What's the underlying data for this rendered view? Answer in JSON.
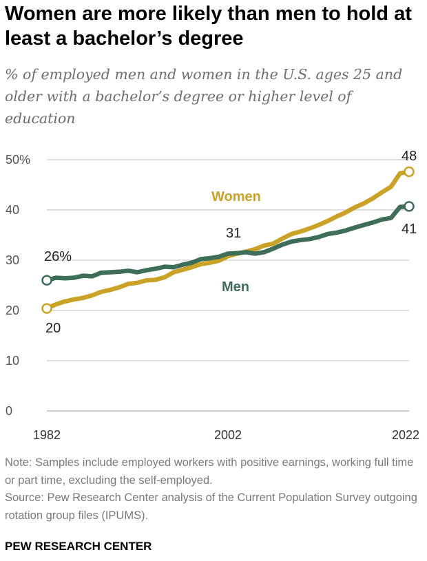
{
  "title": "Women are more likely than men to hold at least a bachelor’s degree",
  "subtitle": "% of employed men and women in the U.S. ages 25 and older with a bachelor’s degree or higher level of education",
  "note": "Note: Samples include employed workers with positive earnings, working full time or part time, excluding the self-employed.",
  "source": "Source: Pew Research Center analysis of the Current Population Survey outgoing rotation group files (IPUMS).",
  "brand": "PEW RESEARCH CENTER",
  "chart_data": {
    "type": "line",
    "x": [
      1982,
      1983,
      1984,
      1985,
      1986,
      1987,
      1988,
      1989,
      1990,
      1991,
      1992,
      1993,
      1994,
      1995,
      1996,
      1997,
      1998,
      1999,
      2000,
      2001,
      2002,
      2003,
      2004,
      2005,
      2006,
      2007,
      2008,
      2009,
      2010,
      2011,
      2012,
      2013,
      2014,
      2015,
      2016,
      2017,
      2018,
      2019,
      2020,
      2021,
      2022
    ],
    "series": [
      {
        "name": "Women",
        "color": "#c9a227",
        "values": [
          20.4,
          21.2,
          21.8,
          22.2,
          22.5,
          23.0,
          23.7,
          24.1,
          24.6,
          25.3,
          25.5,
          26.0,
          26.1,
          26.6,
          27.6,
          28.1,
          28.6,
          29.2,
          29.5,
          29.9,
          30.8,
          31.3,
          31.7,
          32.2,
          32.9,
          33.3,
          34.3,
          35.2,
          35.7,
          36.3,
          37.0,
          37.8,
          38.7,
          39.5,
          40.5,
          41.3,
          42.3,
          43.5,
          44.6,
          47.3,
          47.6
        ],
        "label_start": "20",
        "label_end": "48"
      },
      {
        "name": "Men",
        "color": "#3e6e57",
        "values": [
          26.0,
          26.5,
          26.4,
          26.5,
          26.9,
          26.8,
          27.5,
          27.6,
          27.7,
          27.9,
          27.6,
          28.0,
          28.3,
          28.7,
          28.6,
          29.1,
          29.5,
          30.2,
          30.4,
          30.7,
          31.3,
          31.4,
          31.6,
          31.3,
          31.6,
          32.3,
          33.1,
          33.7,
          34.0,
          34.2,
          34.6,
          35.2,
          35.5,
          35.9,
          36.5,
          37.0,
          37.5,
          38.1,
          38.4,
          40.6,
          40.7
        ],
        "label_start": "26%",
        "label_end": "41"
      }
    ],
    "annotation_2002": "31",
    "ylim": [
      0,
      50
    ],
    "yticks": [
      0,
      10,
      20,
      30,
      40,
      50
    ],
    "ytick_labels": [
      "0",
      "10",
      "20",
      "30",
      "40",
      "50%"
    ],
    "xticks": [
      "1982",
      "2002",
      "2022"
    ],
    "grid": true
  }
}
